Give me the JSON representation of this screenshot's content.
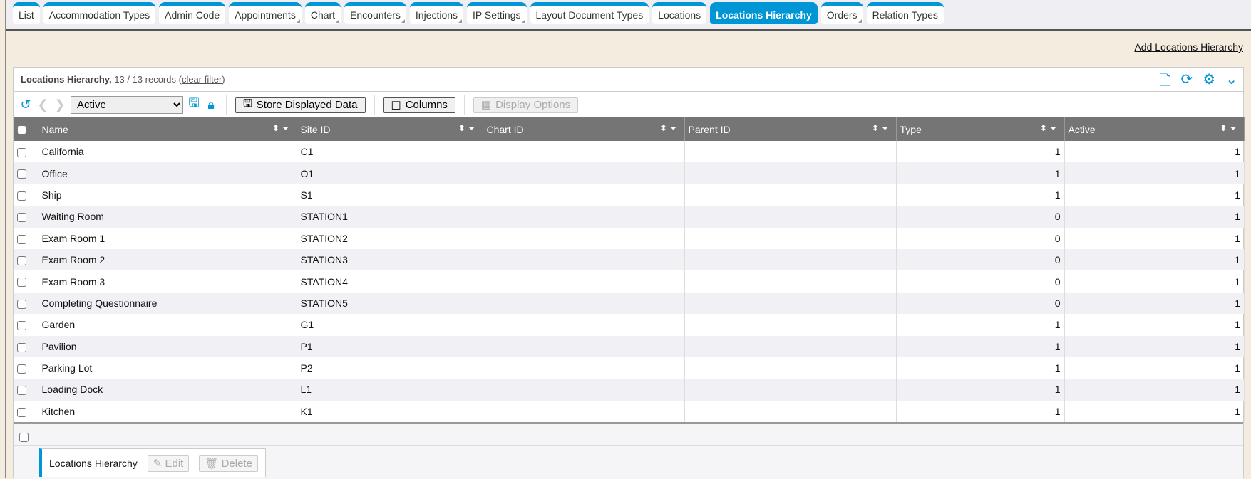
{
  "tabs": [
    {
      "label": "List",
      "sub": false
    },
    {
      "label": "Accommodation Types",
      "sub": false
    },
    {
      "label": "Admin Code",
      "sub": false
    },
    {
      "label": "Appointments",
      "sub": true
    },
    {
      "label": "Chart",
      "sub": true
    },
    {
      "label": "Encounters",
      "sub": true
    },
    {
      "label": "Injections",
      "sub": true
    },
    {
      "label": "IP Settings",
      "sub": true
    },
    {
      "label": "Layout Document Types",
      "sub": false
    },
    {
      "label": "Locations",
      "sub": false
    },
    {
      "label": "Locations Hierarchy",
      "sub": false,
      "active": true
    },
    {
      "label": "Orders",
      "sub": true
    },
    {
      "label": "Relation Types",
      "sub": false
    }
  ],
  "add_link": "Add Locations Hierarchy",
  "panel": {
    "title": "Locations Hierarchy,",
    "records": "13 / 13 records",
    "clear_filter": "clear filter",
    "icons": [
      "new-document-icon",
      "refresh-icon",
      "gear-icon",
      "chevron-down-icon"
    ]
  },
  "toolbar": {
    "filter_value": "Active",
    "store_label": "Store Displayed Data",
    "columns_label": "Columns",
    "display_options_label": "Display Options"
  },
  "accent": "#0096d6",
  "columns": [
    "Name",
    "Site ID",
    "Chart ID",
    "Parent ID",
    "Type",
    "Active"
  ],
  "rows": [
    [
      "California",
      "C1",
      "",
      "",
      "1",
      "1"
    ],
    [
      "Office",
      "O1",
      "",
      "",
      "1",
      "1"
    ],
    [
      "Ship",
      "S1",
      "",
      "",
      "1",
      "1"
    ],
    [
      "Waiting Room",
      "STATION1",
      "",
      "",
      "0",
      "1"
    ],
    [
      "Exam Room 1",
      "STATION2",
      "",
      "",
      "0",
      "1"
    ],
    [
      "Exam Room 2",
      "STATION3",
      "",
      "",
      "0",
      "1"
    ],
    [
      "Exam Room 3",
      "STATION4",
      "",
      "",
      "0",
      "1"
    ],
    [
      "Completing Questionnaire",
      "STATION5",
      "",
      "",
      "0",
      "1"
    ],
    [
      "Garden",
      "G1",
      "",
      "",
      "1",
      "1"
    ],
    [
      "Pavilion",
      "P1",
      "",
      "",
      "1",
      "1"
    ],
    [
      "Parking Lot",
      "P2",
      "",
      "",
      "1",
      "1"
    ],
    [
      "Loading Dock",
      "L1",
      "",
      "",
      "1",
      "1"
    ],
    [
      "Kitchen",
      "K1",
      "",
      "",
      "1",
      "1"
    ]
  ],
  "bottom": {
    "label": "Locations Hierarchy",
    "edit": "Edit",
    "delete": "Delete"
  }
}
